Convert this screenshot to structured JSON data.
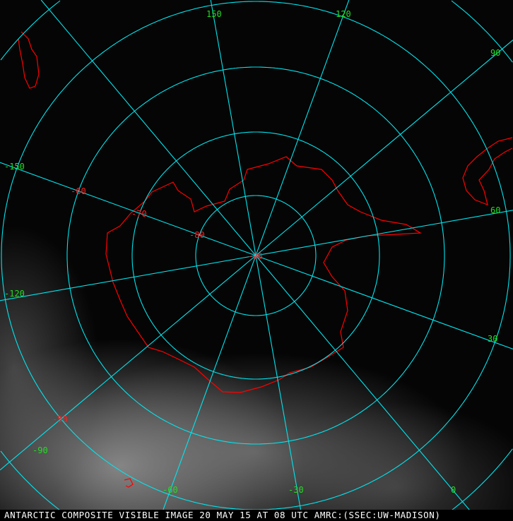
{
  "caption": "ANTARCTIC COMPOSITE VISIBLE IMAGE 20 MAY 15 AT 08 UTC AMRC:(SSEC:UW-MADISON)",
  "longitude_labels": [
    "150",
    "120",
    "90",
    "60",
    "30",
    "0",
    "-30",
    "-60",
    "-90",
    "-120",
    "-150"
  ],
  "latitude_labels": [
    "-50",
    "-60",
    "-70",
    "-80",
    "-90"
  ],
  "colors": {
    "grid": "#00e5ee",
    "coastline": "#ff0000",
    "longitude_label": "#22dd22",
    "latitude_label": "#ff2020",
    "caption": "#ffffff"
  }
}
